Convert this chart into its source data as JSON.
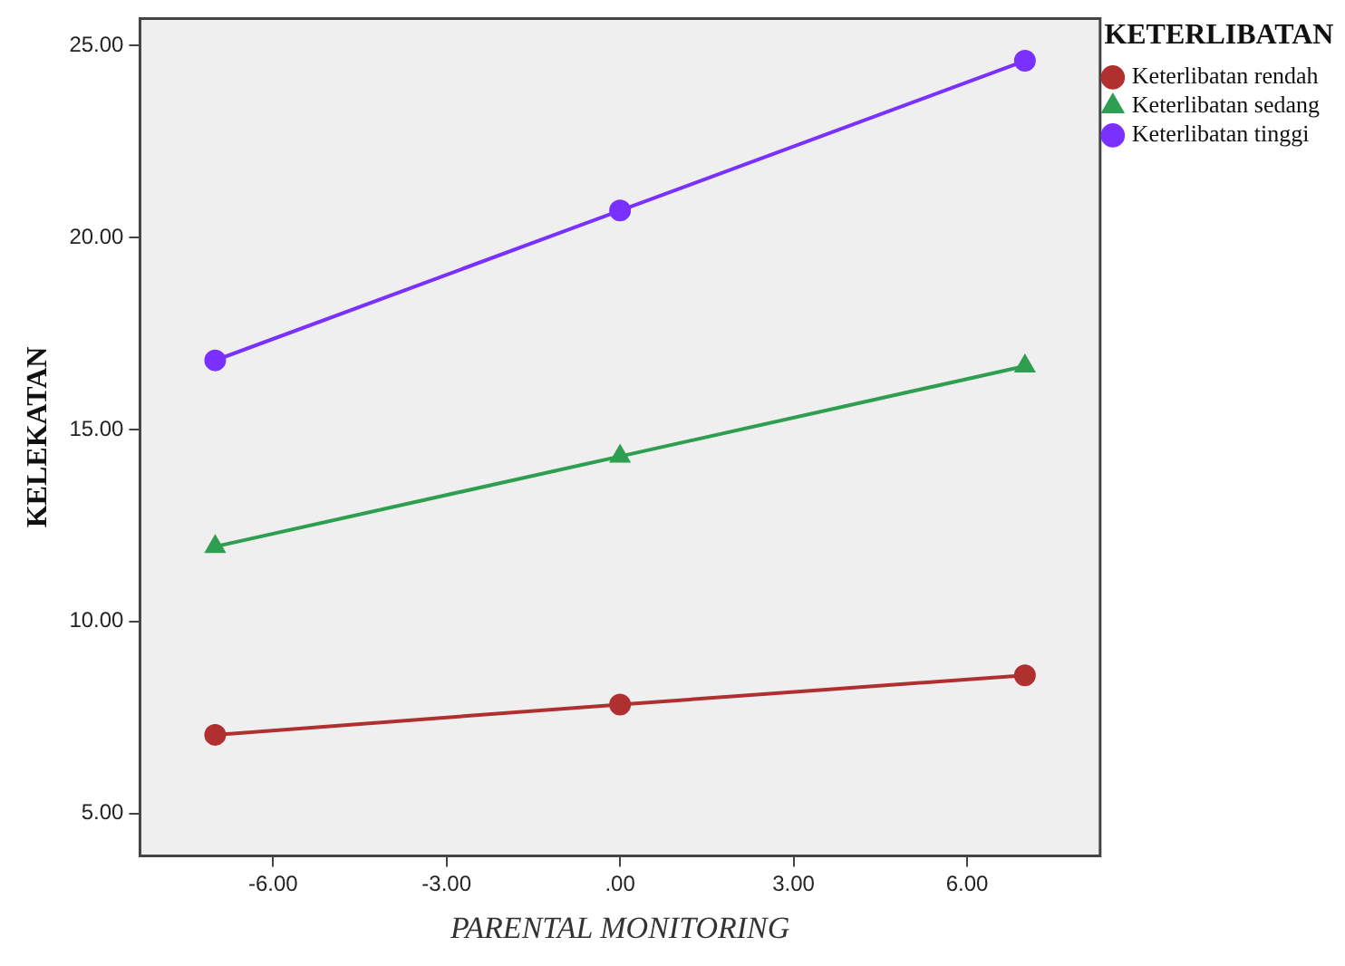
{
  "chart_data": {
    "type": "line",
    "xlabel": "PARENTAL MONITORING",
    "ylabel": "KELEKATAN",
    "legend_title": "KETERLIBATAN",
    "legend": "top right",
    "grid": false,
    "x": [
      -7,
      0,
      7
    ],
    "xlim": [
      -8.3,
      8.3
    ],
    "xticks": [
      {
        "value": -6,
        "label": "-6.00"
      },
      {
        "value": -3,
        "label": "-3.00"
      },
      {
        "value": 0,
        "label": ".00"
      },
      {
        "value": 3,
        "label": "3.00"
      },
      {
        "value": 6,
        "label": "6.00"
      }
    ],
    "ylim": [
      3.9,
      25.7
    ],
    "yticks": [
      {
        "value": 5,
        "label": "5.00"
      },
      {
        "value": 10,
        "label": "10.00"
      },
      {
        "value": 15,
        "label": "15.00"
      },
      {
        "value": 20,
        "label": "20.00"
      },
      {
        "value": 25,
        "label": "25.00"
      }
    ],
    "series": [
      {
        "name": "Keterlibatan rendah",
        "color": "#b03030",
        "marker": "circle",
        "values": [
          7.05,
          7.84,
          8.6
        ]
      },
      {
        "name": "Keterlibatan sedang",
        "color": "#2e9e50",
        "marker": "triangle",
        "values": [
          11.95,
          14.3,
          16.65
        ]
      },
      {
        "name": "Keterlibatan tinggi",
        "color": "#7a30ff",
        "marker": "circle",
        "values": [
          16.8,
          20.7,
          24.6
        ]
      }
    ]
  }
}
